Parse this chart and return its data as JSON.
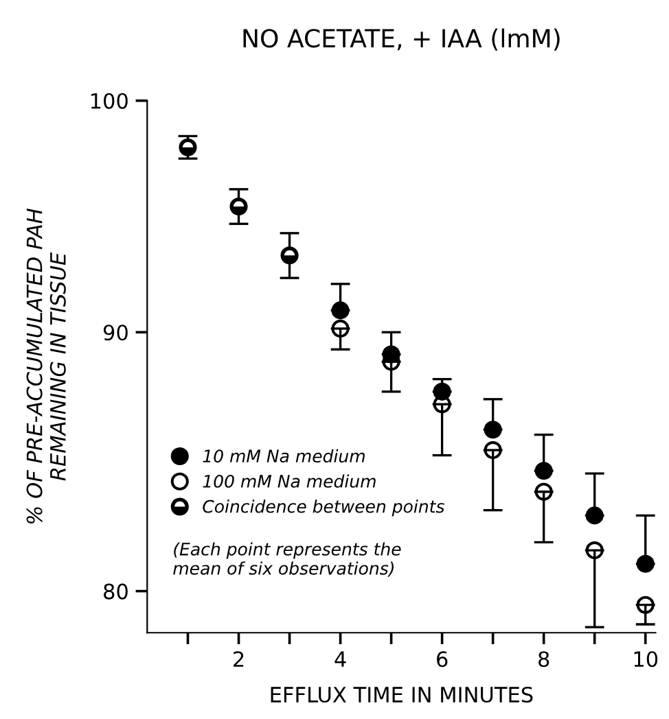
{
  "chart_data": {
    "type": "scatter",
    "title": "NO ACETATE, + IAA (lmM)",
    "xlabel": "EFFLUX TIME IN MINUTES",
    "ylabel": "% OF PRE-ACCUMULATED PAH\nREMAINING IN TISSUE",
    "x": [
      1,
      2,
      3,
      4,
      5,
      6,
      7,
      8,
      9,
      10
    ],
    "series": [
      {
        "name": "10 mM Na medium",
        "color": "#000000",
        "values": [
          null,
          null,
          null,
          90.9,
          89.1,
          87.6,
          86.1,
          84.5,
          82.8,
          81.0
        ],
        "errors": [
          null,
          null,
          null,
          [
            90.9,
            92.0
          ],
          [
            89.1,
            90.0
          ],
          [
            87.6,
            88.1
          ],
          [
            86.1,
            87.3
          ],
          [
            84.5,
            85.9
          ],
          [
            82.8,
            84.4
          ],
          [
            81.0,
            82.8
          ]
        ]
      },
      {
        "name": "100 mM Na medium",
        "color": "#000000",
        "values": [
          null,
          null,
          null,
          90.15,
          88.8,
          87.1,
          85.3,
          83.7,
          81.5,
          79.5
        ],
        "errors": [
          null,
          null,
          null,
          [
            89.3,
            90.15
          ],
          [
            87.6,
            88.8
          ],
          [
            85.1,
            87.1
          ],
          [
            83.0,
            85.3
          ],
          [
            81.8,
            83.7
          ],
          [
            78.7,
            81.5
          ],
          [
            78.8,
            79.5
          ]
        ]
      },
      {
        "name": "Coincidence between points",
        "color": "#000000",
        "values": [
          97.9,
          95.3,
          93.2,
          null,
          null,
          null,
          null,
          null,
          null,
          null
        ],
        "errors": [
          0.5,
          0.75,
          0.95,
          null,
          null,
          null,
          null,
          null,
          null,
          null
        ]
      }
    ],
    "annotations": [
      "(Each point represents the\nmean of six observations)"
    ],
    "log": "y",
    "xlim": [
      0.2,
      10.2
    ],
    "ylim": [
      78.5,
      100
    ],
    "xticks": [
      {
        "value": 1,
        "label": null
      },
      2,
      {
        "value": 3,
        "label": null
      },
      4,
      {
        "value": 5,
        "label": null
      },
      6,
      {
        "value": 7,
        "label": null
      },
      8,
      {
        "value": 9,
        "label": null
      },
      10
    ],
    "yticks": [
      80,
      90,
      100
    ],
    "marker": "circle",
    "grid": false,
    "legend": "bottom left"
  }
}
